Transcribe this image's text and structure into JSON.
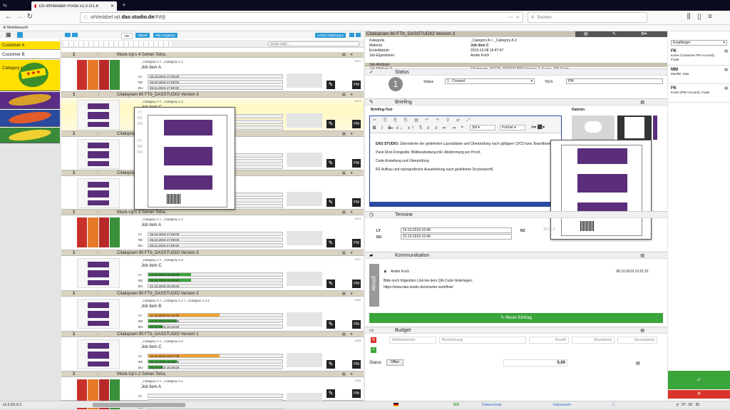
{
  "browser": {
    "tab_title": "DS-Whitelabel Portal v1.0.0/1.6",
    "url_prefix": "whitelabel.wjt.",
    "url_domain": "das-studio.de",
    "url_path": "/#Wjt",
    "search_placeholder": "Suchen",
    "bookmark": "Meistbesucht"
  },
  "sidebar": {
    "customers": [
      {
        "label": "Customer A"
      },
      {
        "label": "Customer B"
      }
    ],
    "category_label": "Category A"
  },
  "list": {
    "filter_all": "Alle",
    "filter_current": "Aktuell",
    "filter_my_tasks": "Alle Aufgaben",
    "sort_label": "Letzte Änderung",
    "search_placeholder": "Suche nach ...",
    "date_labels": {
      "ly": "LY",
      "rz": "RZ",
      "du": "DU"
    },
    "items": [
      {
        "num": "1",
        "title": "Mock-Up's 4 Sorten Tetra,",
        "category": "_Category A > _Category A.1",
        "job": "Job item A",
        "ly": "28.10.2019 17:09:00",
        "rz": "29.10.2019 17:09:00",
        "du": "08.11.2019 17:09:00",
        "id": "8907"
      },
      {
        "num": "1",
        "title": "Citalopram 60 FTb_DASSTUDIO Version 3",
        "category": "_Category A > _Category A.3",
        "job": "Job item C",
        "ly": "",
        "rz": "",
        "du": "",
        "id": "8901"
      },
      {
        "num": "1",
        "title": "Citalopram 60 F",
        "category": "",
        "job": "Jo",
        "ly": "",
        "rz": "",
        "du": "",
        "id": ""
      },
      {
        "num": "1",
        "title": "Citalopram 60 F",
        "category": "",
        "job": "Jo",
        "ly": "",
        "rz": "",
        "du": "18.10.2019 16:49:00",
        "id": ""
      },
      {
        "num": "1",
        "title": "Mock-Up's 3 Sorten Tetra,",
        "category": "_Category A > _Category A.1",
        "job": "Job item A",
        "ly": "28.10.2019 17:09:00",
        "rz": "29.10.2019 17:09:00",
        "du": "08.11.2019 17:09:00",
        "id": "8901"
      },
      {
        "num": "1",
        "title": "Citalopram 90 FTb_DASSTUDIO Version 3",
        "category": "_Category A > _Category A.3",
        "job": "Job item C",
        "ly": "14.10.2019 16:49:00",
        "rz": "15.10.2019 16:49:00",
        "du": "21.10.2019 16:49:00",
        "id": "8897"
      },
      {
        "num": "1",
        "title": "Citalopram 90 FTb_DASSTUDIO Version 2",
        "category": "_Category A > _Category A.2 > _Category A.2.1",
        "job": "Job item B",
        "ly": "11.10.2019 16:44:00",
        "rz": "14.10.2019 16:44:00",
        "du": "15.10.2019 16:44:00",
        "id": "8887"
      },
      {
        "num": "1",
        "title": "Citalopram 90 FTb_DASSTUDIO Version 1",
        "category": "_Category A > _Category A.3",
        "job": "Job item C",
        "ly": "10.10.2019 16:37:00",
        "rz": "15.10.2019 16:38:00",
        "du": "18.10.2019 16:38:00",
        "id": "8885"
      },
      {
        "num": "1",
        "title": "Mock-Up's 2 Sorten Tetra,",
        "category": "_Category A > _Category A.1",
        "job": "Job item A",
        "ly": "",
        "rz": "",
        "du": "",
        "id": "8881"
      }
    ]
  },
  "detail": {
    "title": "Citalopram 60 FTb_DASSTUDIO Version 3",
    "info": [
      {
        "k": "Kategorie",
        "v": "_Category A > _Category A.3"
      },
      {
        "k": "Material",
        "v": "Job item C"
      },
      {
        "k": "Erstelldatum",
        "v": "2019-10-08 16:47:47"
      },
      {
        "k": "Job-Eigentümer",
        "v": "Andre Koch"
      }
    ],
    "attr_header": "Job-Attribute",
    "attr_label": "Job Attribute A",
    "attr_value": "Citalopram, 60 FTb, DASSTUDIO Version 3, Suzan, QR-Code",
    "status_title": "Status",
    "status_number": "1",
    "status_label": "Status",
    "status_value": "1 - Created",
    "todo_label": "ToDo",
    "todo_value": "PM",
    "briefing_title": "Briefing",
    "briefing_text_label": "Briefing-Text",
    "files_label": "Dateien",
    "editor_style": "Stil",
    "editor_format": "Format",
    "briefing_bold": "DAS STUDIO:",
    "briefing_p1": " Übernahme der gelieferten Layoutdaten und Überprüfung nach gültigem CI/CD bzw. Brandbook",
    "briefing_p2": "Pack-Shot-Fotografie, Bildbearbeitung inkl. Abstimmung per Proof,",
    "briefing_p3": "Code-Erstellung und Überprüfung",
    "briefing_p4": "RZ Aufbau und reprografische Ausarbeitung nach gelieferten Druckerprofil,",
    "termine_title": "Termine",
    "ly_label": "LY",
    "ly_value": "14.10.2019 16:49",
    "du_label": "DU",
    "du_value": "21.10.2019 16:49",
    "rz_label": "RZ",
    "rz_value": "15.10.2",
    "komm_title": "Kommunikation",
    "komm_tab": "Aktuell",
    "komm_author": "Andre Koch",
    "komm_date": "08.10.2019 16:51:51",
    "komm_line1": "Bitte noch folgenden Link bei dem QR-Code hinterlegen:",
    "komm_line2": "https://www.das-studio.de/smarter-workflow/",
    "new_entry_btn": "✎ Neuer Eintrag",
    "budget_title": "Budget",
    "budget_cols": [
      "Artikelnummer",
      "Bezeichnung",
      "Anzahl",
      "Einzelpreis",
      "Gesamtpreis"
    ],
    "budget_status_label": "Status",
    "budget_status_value": "Offen",
    "budget_total": "0,00"
  },
  "right": {
    "select_label": "Empfänger",
    "recipients": [
      {
        "code": "FK",
        "desc": "Kores (Customer PM Account), Frank"
      },
      {
        "code": "MM",
        "desc": "Mueller, Max"
      },
      {
        "code": "FK",
        "desc": "Kores (PM-Account), Frank"
      }
    ],
    "confirm": "✓",
    "cancel": "✕"
  },
  "statusbar": {
    "version": "v1.0.0/1.6.2",
    "ws": "WS",
    "privacy": "Datenschutz",
    "imprint": "Impressum",
    "timer": "07 : 50 : 30"
  },
  "colors": {
    "accent_blue": "#2d9ad6",
    "yellow": "#ffe000",
    "green": "#3aa53a",
    "orange": "#f0a030",
    "purple": "#5a2e7a",
    "red": "#d9342b"
  }
}
